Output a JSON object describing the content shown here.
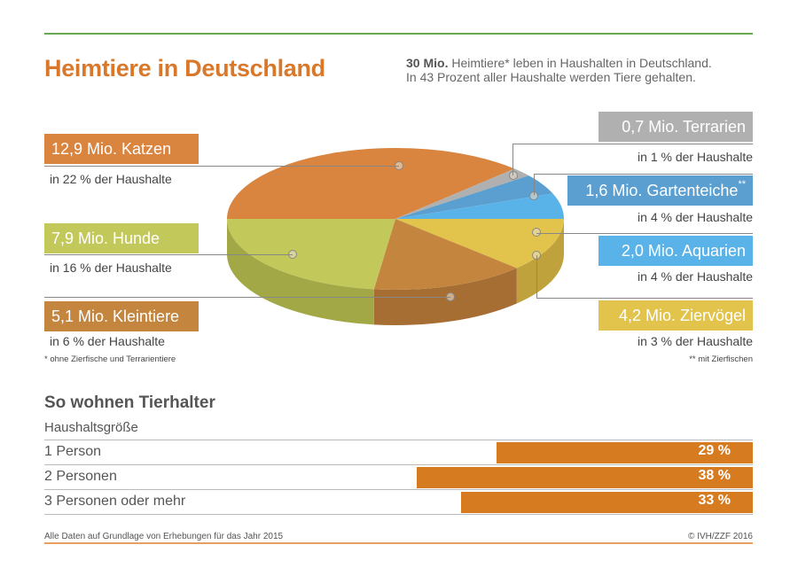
{
  "header": {
    "title": "Heimtiere in Deutschland",
    "intro_bold": "30 Mio.",
    "intro_rest": " Heimtiere* leben in Haushalten in Deutschland.",
    "intro_line2": "In 43 Prozent aller Haushalte werden Tiere gehalten."
  },
  "chart_data": [
    {
      "type": "pie",
      "title": "Heimtiere in Deutschland",
      "unit": "Mio.",
      "slices": [
        {
          "key": "katzen",
          "label": "12,9 Mio. Katzen",
          "value": 12.9,
          "households": "in 22 % der Haushalte",
          "color": "#d9843f",
          "side": "#b86d30"
        },
        {
          "key": "terrarien",
          "label": "0,7 Mio. Terrarien",
          "value": 0.7,
          "households": "in 1 % der Haushalte",
          "color": "#b0b0b0",
          "side": "#909090"
        },
        {
          "key": "gartenteiche",
          "label": "1,6 Mio. Gartenteiche",
          "label_sup": "**",
          "value": 1.6,
          "households": "in 4 % der Haushalte",
          "color": "#5b9fd0",
          "side": "#4a84ad"
        },
        {
          "key": "aquarien",
          "label": "2,0 Mio. Aquarien",
          "value": 2.0,
          "households": "in 4 % der Haushalte",
          "color": "#5ab3e8",
          "side": "#4795c4"
        },
        {
          "key": "ziervoegel",
          "label": "4,2 Mio. Ziervögel",
          "value": 4.2,
          "households": "in 3 % der Haushalte",
          "color": "#e2c34c",
          "side": "#bfa23c"
        },
        {
          "key": "kleintiere",
          "label": "5,1 Mio. Kleintiere",
          "value": 5.1,
          "households": "in 6 % der Haushalte",
          "color": "#c4863f",
          "side": "#a66e33"
        },
        {
          "key": "hunde",
          "label": "7,9 Mio. Hunde",
          "value": 7.9,
          "households": "in 16 % der Haushalte",
          "color": "#c2c85a",
          "side": "#a3a846"
        }
      ],
      "footnotes": [
        "* ohne Zierfische und Terrarientiere",
        "** mit Zierfischen"
      ]
    },
    {
      "type": "bar",
      "title": "So wohnen Tierhalter",
      "xlabel": "Haushaltsgröße",
      "categories": [
        "1 Person",
        "2 Personen",
        "3 Personen oder mehr"
      ],
      "values": [
        29,
        38,
        33
      ],
      "value_labels": [
        "29 %",
        "38 %",
        "33 %"
      ],
      "color": "#d67b1f"
    }
  ],
  "footer": {
    "source": "Alle Daten auf Grundlage von Erhebungen für das Jahr 2015",
    "copyright": "© IVH/ZZF 2016"
  }
}
